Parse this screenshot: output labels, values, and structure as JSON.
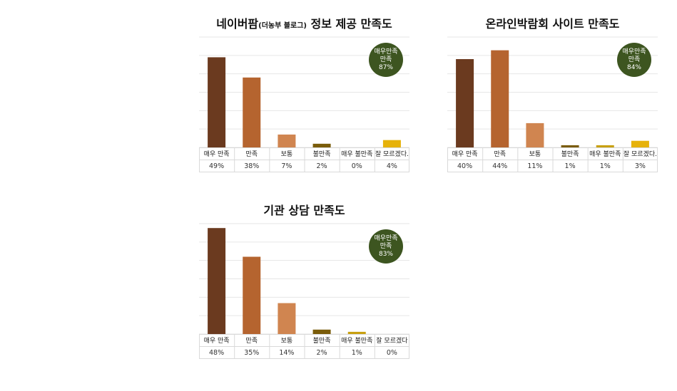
{
  "chart_data": [
    {
      "type": "bar",
      "title": "네이버팜",
      "title_sub": "(더농부 블로그)",
      "title_rest": " 정보 제공 만족도",
      "categories": [
        "매우 만족",
        "만족",
        "보통",
        "불만족",
        "매우 불만족",
        "잘 모르겠다."
      ],
      "values": [
        49,
        38,
        7,
        2,
        0,
        4
      ],
      "value_labels": [
        "49%",
        "38%",
        "7%",
        "2%",
        "0%",
        "4%"
      ],
      "ylim": [
        0,
        60
      ],
      "grid": true,
      "badge": {
        "line1": "매우만족",
        "line2": "만족",
        "line3": "87%"
      }
    },
    {
      "type": "bar",
      "title": "온라인박람회 사이트 만족도",
      "title_sub": "",
      "title_rest": "",
      "categories": [
        "매우 만족",
        "만족",
        "보통",
        "불만족",
        "매우 불만족",
        "잘 모르겠다."
      ],
      "values": [
        40,
        44,
        11,
        1,
        1,
        3
      ],
      "value_labels": [
        "40%",
        "44%",
        "11%",
        "1%",
        "1%",
        "3%"
      ],
      "ylim": [
        0,
        50
      ],
      "grid": true,
      "badge": {
        "line1": "매우만족",
        "line2": "만족",
        "line3": "84%"
      }
    },
    {
      "type": "bar",
      "title": "기관 상담 만족도",
      "title_sub": "",
      "title_rest": "",
      "categories": [
        "매우 만족",
        "만족",
        "보통",
        "불만족",
        "매우 불만족",
        "잘 모르겠다"
      ],
      "values": [
        48,
        35,
        14,
        2,
        1,
        0
      ],
      "value_labels": [
        "48%",
        "35%",
        "14%",
        "2%",
        "1%",
        "0%"
      ],
      "ylim": [
        0,
        50
      ],
      "grid": true,
      "badge": {
        "line1": "매우만족",
        "line2": "만족",
        "line3": "83%"
      }
    }
  ],
  "colors": {
    "bars": [
      "#6b3a1f",
      "#b5642f",
      "#d08550",
      "#7a5c0a",
      "#c8a010",
      "#e6b20a"
    ],
    "badge": "#3d5520",
    "grid": "#e6e6e6",
    "table_border": "#d9d9d9"
  }
}
